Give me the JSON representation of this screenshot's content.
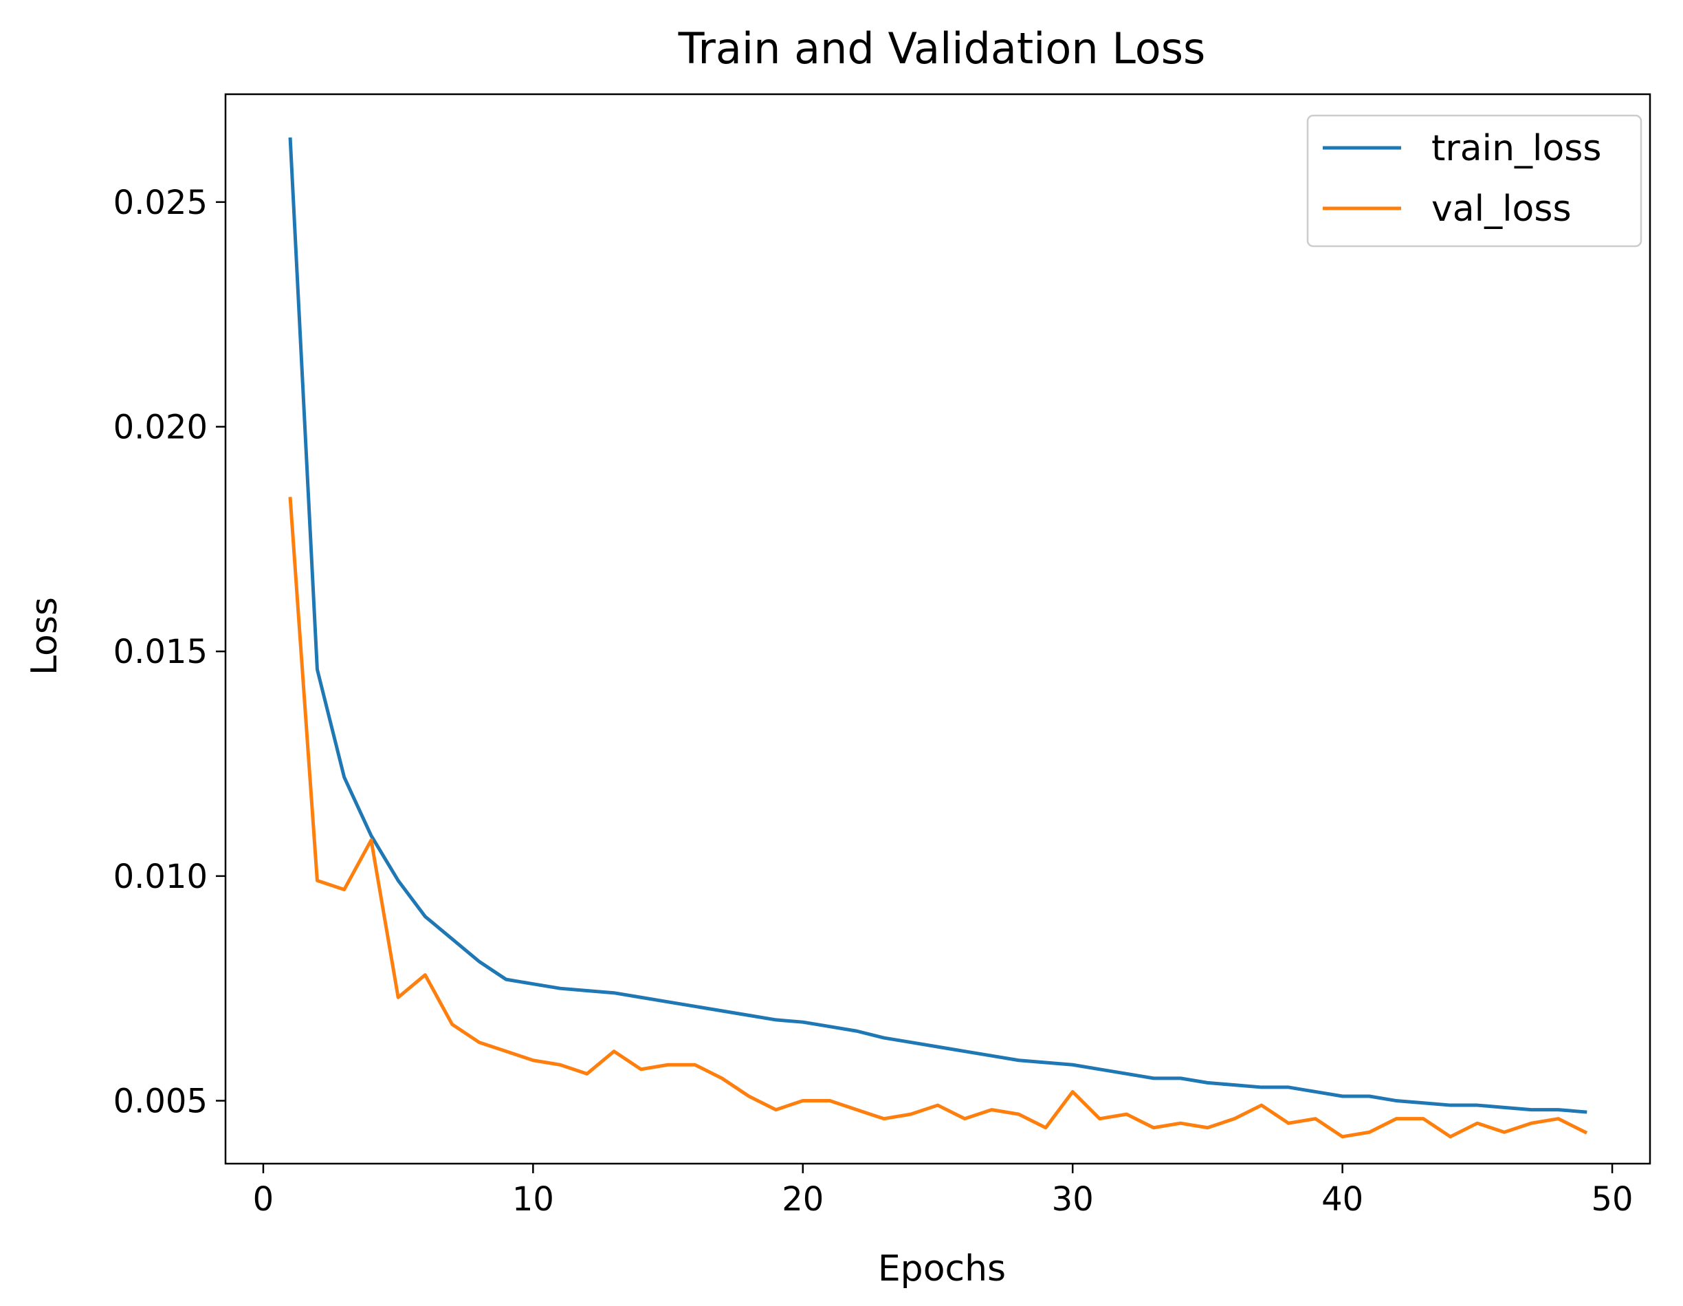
{
  "chart_data": {
    "type": "line",
    "title": "Train and Validation Loss",
    "xlabel": "Epochs",
    "ylabel": "Loss",
    "xlim": [
      -1.4,
      51.4
    ],
    "ylim": [
      0.0036,
      0.0274
    ],
    "xticks": [
      0,
      10,
      20,
      30,
      40,
      50
    ],
    "xtick_labels": [
      "0",
      "10",
      "20",
      "30",
      "40",
      "50"
    ],
    "yticks": [
      0.005,
      0.01,
      0.015,
      0.02,
      0.025
    ],
    "ytick_labels": [
      "0.005",
      "0.010",
      "0.015",
      "0.020",
      "0.025"
    ],
    "grid": false,
    "legend_position": "top-right",
    "x": [
      1,
      2,
      3,
      4,
      5,
      6,
      7,
      8,
      9,
      10,
      11,
      12,
      13,
      14,
      15,
      16,
      17,
      18,
      19,
      20,
      21,
      22,
      23,
      24,
      25,
      26,
      27,
      28,
      29,
      30,
      31,
      32,
      33,
      34,
      35,
      36,
      37,
      38,
      39,
      40,
      41,
      42,
      43,
      44,
      45,
      46,
      47,
      48,
      49
    ],
    "series": [
      {
        "name": "train_loss",
        "color": "#1f77b4",
        "values": [
          0.0264,
          0.0146,
          0.0122,
          0.0109,
          0.0099,
          0.0091,
          0.0086,
          0.0081,
          0.0077,
          0.0076,
          0.0075,
          0.00745,
          0.0074,
          0.0073,
          0.0072,
          0.0071,
          0.007,
          0.0069,
          0.0068,
          0.00675,
          0.00665,
          0.00655,
          0.0064,
          0.0063,
          0.0062,
          0.0061,
          0.006,
          0.0059,
          0.00585,
          0.0058,
          0.0057,
          0.0056,
          0.0055,
          0.0055,
          0.0054,
          0.00535,
          0.0053,
          0.0053,
          0.0052,
          0.0051,
          0.0051,
          0.005,
          0.00495,
          0.0049,
          0.0049,
          0.00485,
          0.0048,
          0.0048,
          0.00475
        ]
      },
      {
        "name": "val_loss",
        "color": "#ff7f0e",
        "values": [
          0.0184,
          0.0099,
          0.0097,
          0.0108,
          0.0073,
          0.0078,
          0.0067,
          0.0063,
          0.0061,
          0.0059,
          0.0058,
          0.0056,
          0.0061,
          0.0057,
          0.0058,
          0.0058,
          0.0055,
          0.0051,
          0.0048,
          0.005,
          0.005,
          0.0048,
          0.0046,
          0.0047,
          0.0049,
          0.0046,
          0.0048,
          0.0047,
          0.0044,
          0.0052,
          0.0046,
          0.0047,
          0.0044,
          0.0045,
          0.0044,
          0.0046,
          0.0049,
          0.0045,
          0.0046,
          0.0042,
          0.0043,
          0.0046,
          0.0046,
          0.0042,
          0.0045,
          0.0043,
          0.0045,
          0.0046,
          0.0043
        ]
      }
    ]
  }
}
